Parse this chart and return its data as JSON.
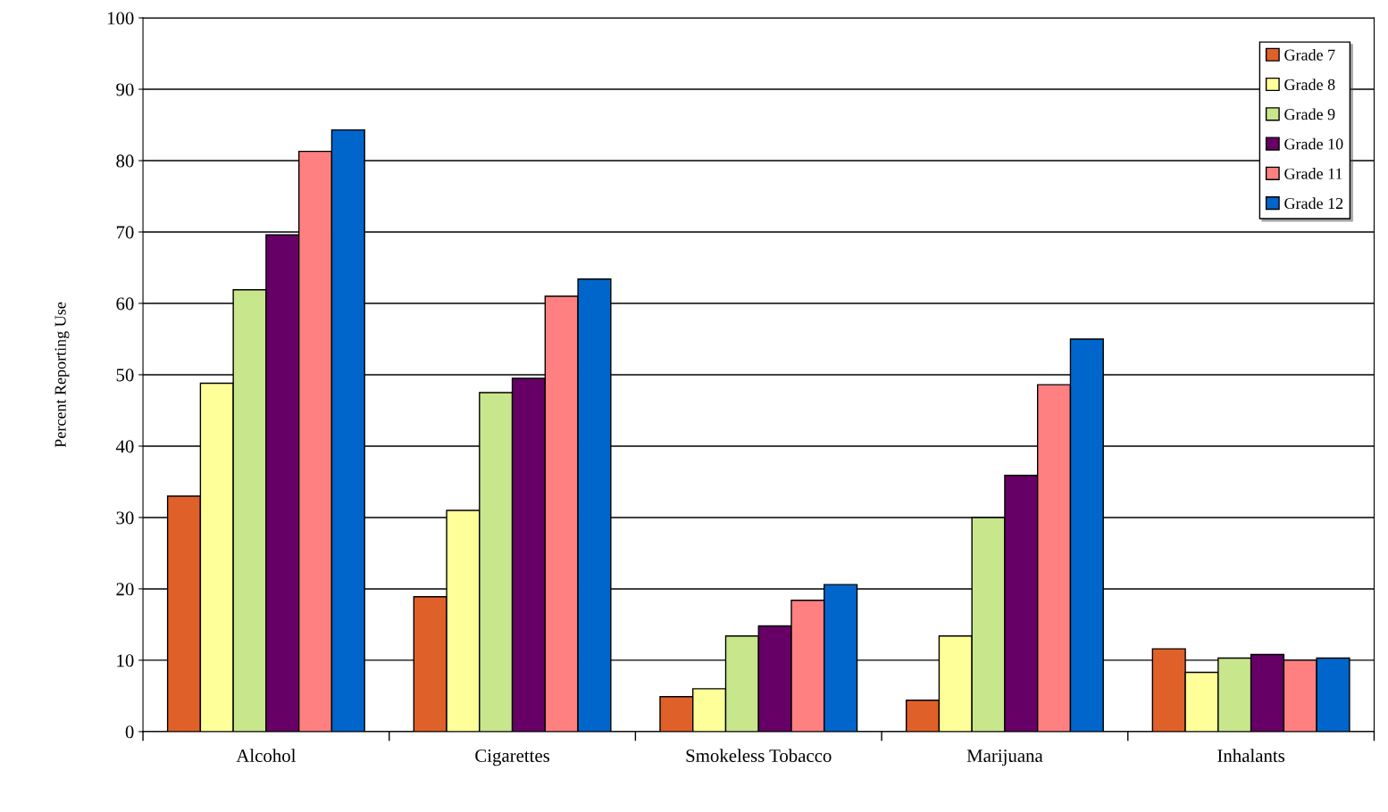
{
  "chart_data": {
    "type": "bar",
    "ylabel": "Percent Reporting Use",
    "categories": [
      "Alcohol",
      "Cigarettes",
      "Smokeless Tobacco",
      "Marijuana",
      "Inhalants"
    ],
    "series": [
      {
        "name": "Grade 7",
        "color": "#e0602a",
        "values": [
          33.0,
          18.9,
          4.9,
          4.4,
          11.6
        ]
      },
      {
        "name": "Grade 8",
        "color": "#ffff99",
        "values": [
          48.8,
          31.0,
          6.0,
          13.4,
          8.3
        ]
      },
      {
        "name": "Grade 9",
        "color": "#c8e68c",
        "values": [
          61.9,
          47.5,
          13.4,
          30.0,
          10.3
        ]
      },
      {
        "name": "Grade 10",
        "color": "#660066",
        "values": [
          69.6,
          49.5,
          14.8,
          35.9,
          10.8
        ]
      },
      {
        "name": "Grade 11",
        "color": "#ff8080",
        "values": [
          81.3,
          61.0,
          18.4,
          48.6,
          10.0
        ]
      },
      {
        "name": "Grade 12",
        "color": "#0066cc",
        "values": [
          84.3,
          63.4,
          20.6,
          55.0,
          10.3
        ]
      }
    ],
    "ylim": [
      0,
      100
    ],
    "yticks": [
      0,
      10,
      20,
      30,
      40,
      50,
      60,
      70,
      80,
      90,
      100
    ],
    "grid": "y",
    "legend": "top right"
  }
}
